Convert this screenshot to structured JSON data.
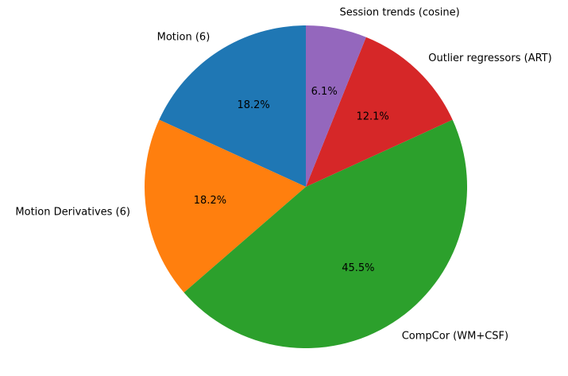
{
  "chart_data": {
    "type": "pie",
    "title": "",
    "categories": [
      "Motion (6)",
      "Motion Derivatives (6)",
      "CompCor (WM+CSF)",
      "Outlier regressors (ART)",
      "Session trends (cosine)"
    ],
    "values": [
      18.2,
      18.2,
      45.5,
      12.1,
      6.1
    ],
    "value_labels": [
      "18.2%",
      "18.2%",
      "45.5%",
      "12.1%",
      "6.1%"
    ],
    "colors": [
      "#1f77b4",
      "#ff7f0e",
      "#2ca02c",
      "#d62728",
      "#9467bd"
    ],
    "start_angle_deg": 90,
    "direction": "counterclockwise",
    "legend": "none"
  }
}
